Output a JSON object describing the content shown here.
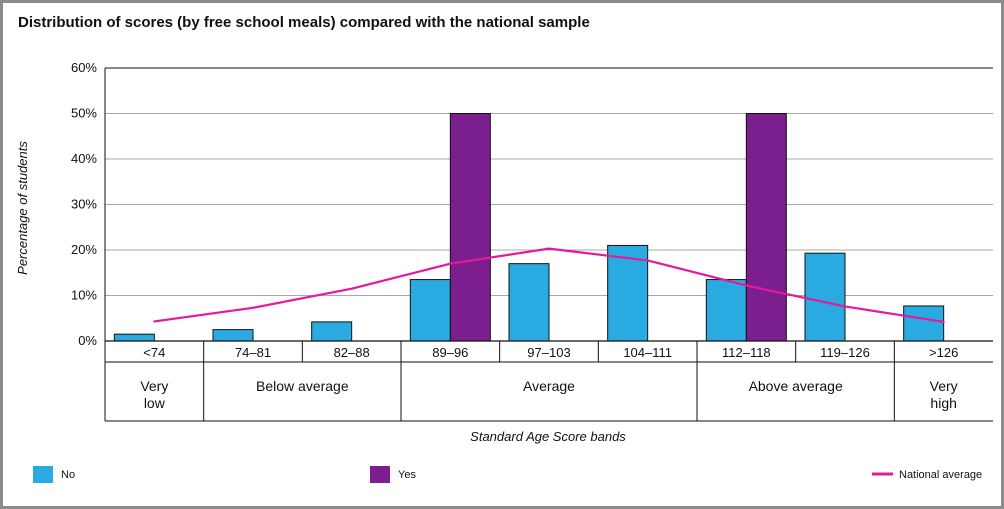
{
  "chart_data": {
    "type": "bar",
    "title": "Distribution of scores (by free school meals) compared with the national sample",
    "xlabel": "Standard Age Score bands",
    "ylabel": "Percentage of students",
    "ylim": [
      0,
      60
    ],
    "yticks": [
      0,
      10,
      20,
      30,
      40,
      50,
      60
    ],
    "ytick_labels": [
      "0%",
      "10%",
      "20%",
      "30%",
      "40%",
      "50%",
      "60%"
    ],
    "grid": true,
    "categories": [
      "<74",
      "74–81",
      "82–88",
      "89–96",
      "97–103",
      "104–111",
      "112–118",
      "119–126",
      ">126"
    ],
    "bands": [
      {
        "label": "Very low",
        "lines": [
          "Very",
          "low"
        ],
        "start": 0,
        "end": 0
      },
      {
        "label": "Below average",
        "lines": [
          "Below average"
        ],
        "start": 1,
        "end": 2
      },
      {
        "label": "Average",
        "lines": [
          "Average"
        ],
        "start": 3,
        "end": 5
      },
      {
        "label": "Above average",
        "lines": [
          "Above average"
        ],
        "start": 6,
        "end": 7
      },
      {
        "label": "Very high",
        "lines": [
          "Very",
          "high"
        ],
        "start": 8,
        "end": 8
      }
    ],
    "series": [
      {
        "name": "No",
        "kind": "bar",
        "color": "#29abe2",
        "values": [
          1.5,
          2.5,
          4.2,
          13.5,
          17,
          21,
          13.5,
          19.3,
          7.7
        ]
      },
      {
        "name": "Yes",
        "kind": "bar",
        "color": "#7b1f8e",
        "values": [
          0,
          0,
          0,
          50,
          0,
          0,
          50,
          0,
          0
        ]
      },
      {
        "name": "National average",
        "kind": "line",
        "color": "#e6199b",
        "values": [
          4.3,
          7.3,
          11.5,
          17,
          20.3,
          17.7,
          12.2,
          7.6,
          4.2
        ]
      }
    ],
    "legend": {
      "placement": "bottom",
      "entries": [
        "No",
        "Yes",
        "National average"
      ]
    }
  }
}
